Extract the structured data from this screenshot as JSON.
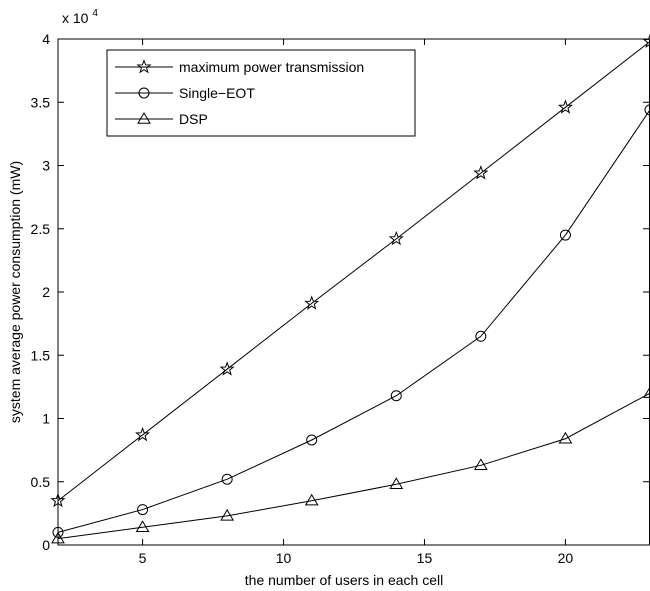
{
  "chart_data": {
    "type": "line",
    "title": "",
    "xlabel": "the number of users in each cell",
    "ylabel": "system average power consumption (mW)",
    "y_exponent_label": {
      "base": "x 10",
      "exp": "4"
    },
    "x": [
      2,
      5,
      8,
      11,
      14,
      17,
      20,
      23
    ],
    "xlim": [
      2,
      23
    ],
    "ylim": [
      0,
      40000
    ],
    "xticks": [
      5,
      10,
      15,
      20
    ],
    "yticks": [
      0,
      5000,
      10000,
      15000,
      20000,
      25000,
      30000,
      35000,
      40000
    ],
    "ytick_labels": [
      "0",
      "0.5",
      "1",
      "1.5",
      "2",
      "2.5",
      "3",
      "3.5",
      "4"
    ],
    "xtick_labels": [
      "5",
      "10",
      "15",
      "20"
    ],
    "grid": false,
    "legend_position": "top-left",
    "series": [
      {
        "name": "maximum power transmission",
        "marker": "star",
        "values": [
          3500,
          8700,
          13900,
          19100,
          24200,
          29400,
          34600,
          39800
        ]
      },
      {
        "name": "Single−EOT",
        "marker": "circle",
        "values": [
          1000,
          2800,
          5200,
          8300,
          11800,
          16500,
          24500,
          34400
        ]
      },
      {
        "name": "DSP",
        "marker": "triangle",
        "values": [
          500,
          1400,
          2300,
          3500,
          4800,
          6300,
          8400,
          12000
        ]
      }
    ],
    "line_color": "#000000"
  }
}
